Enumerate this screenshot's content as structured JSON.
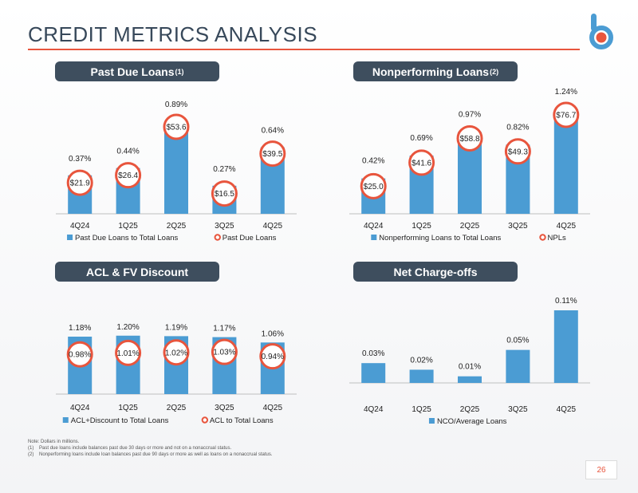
{
  "page": {
    "title": "CREDIT METRICS ANALYSIS",
    "page_number": "26"
  },
  "colors": {
    "bar": "#4b9cd3",
    "circle": "#e8553d",
    "header": "#3e4e5e",
    "title": "#37485a"
  },
  "notes": {
    "intro": "Note: Dollars in millions.",
    "n1_marker": "(1)",
    "n1": "Past due loans include balances past due 30 days or more and not on a nonaccrual status.",
    "n2_marker": "(2)",
    "n2": "Nonperforming loans include loan balances past due 90 days or more as well as loans on a nonaccrual status."
  },
  "chart_data": [
    {
      "type": "bar",
      "title": "Past Due Loans",
      "title_sup": "(1)",
      "categories": [
        "4Q24",
        "1Q25",
        "2Q25",
        "3Q25",
        "4Q25"
      ],
      "series": [
        {
          "name": "Past Due Loans to Total Loans",
          "values": [
            0.37,
            0.44,
            0.89,
            0.27,
            0.64
          ],
          "labels": [
            "0.37%",
            "0.44%",
            "0.89%",
            "0.27%",
            "0.64%"
          ]
        },
        {
          "name": "Past Due Loans",
          "values": [
            21.9,
            26.4,
            53.6,
            16.5,
            39.5
          ],
          "labels": [
            "$21.9",
            "$26.4",
            "$53.6",
            "$16.5",
            "$39.5"
          ]
        }
      ]
    },
    {
      "type": "bar",
      "title": "Nonperforming Loans",
      "title_sup": "(2)",
      "categories": [
        "4Q24",
        "1Q25",
        "2Q25",
        "3Q25",
        "4Q25"
      ],
      "series": [
        {
          "name": "Nonperforming Loans to Total Loans",
          "values": [
            0.42,
            0.69,
            0.97,
            0.82,
            1.24
          ],
          "labels": [
            "0.42%",
            "0.69%",
            "0.97%",
            "0.82%",
            "1.24%"
          ]
        },
        {
          "name": "NPLs",
          "values": [
            25.0,
            41.6,
            58.8,
            49.3,
            76.7
          ],
          "labels": [
            "$25.0",
            "$41.6",
            "$58.8",
            "$49.3",
            "$76.7"
          ]
        }
      ]
    },
    {
      "type": "bar",
      "title": "ACL & FV Discount",
      "title_sup": "",
      "categories": [
        "4Q24",
        "1Q25",
        "2Q25",
        "3Q25",
        "4Q25"
      ],
      "series": [
        {
          "name": "ACL+Discount to Total Loans",
          "values": [
            1.18,
            1.2,
            1.19,
            1.17,
            1.06
          ],
          "labels": [
            "1.18%",
            "1.20%",
            "1.19%",
            "1.17%",
            "1.06%"
          ]
        },
        {
          "name": "ACL to Total Loans",
          "values": [
            0.98,
            1.01,
            1.02,
            1.03,
            0.94
          ],
          "labels": [
            "0.98%",
            "1.01%",
            "1.02%",
            "1.03%",
            "0.94%"
          ]
        }
      ]
    },
    {
      "type": "bar",
      "title": "Net Charge-offs",
      "title_sup": "",
      "categories": [
        "4Q24",
        "1Q25",
        "2Q25",
        "3Q25",
        "4Q25"
      ],
      "series": [
        {
          "name": "NCO/Average Loans",
          "values": [
            0.03,
            0.02,
            0.01,
            0.05,
            0.11
          ],
          "labels": [
            "0.03%",
            "0.02%",
            "0.01%",
            "0.05%",
            "0.11%"
          ]
        }
      ]
    }
  ]
}
